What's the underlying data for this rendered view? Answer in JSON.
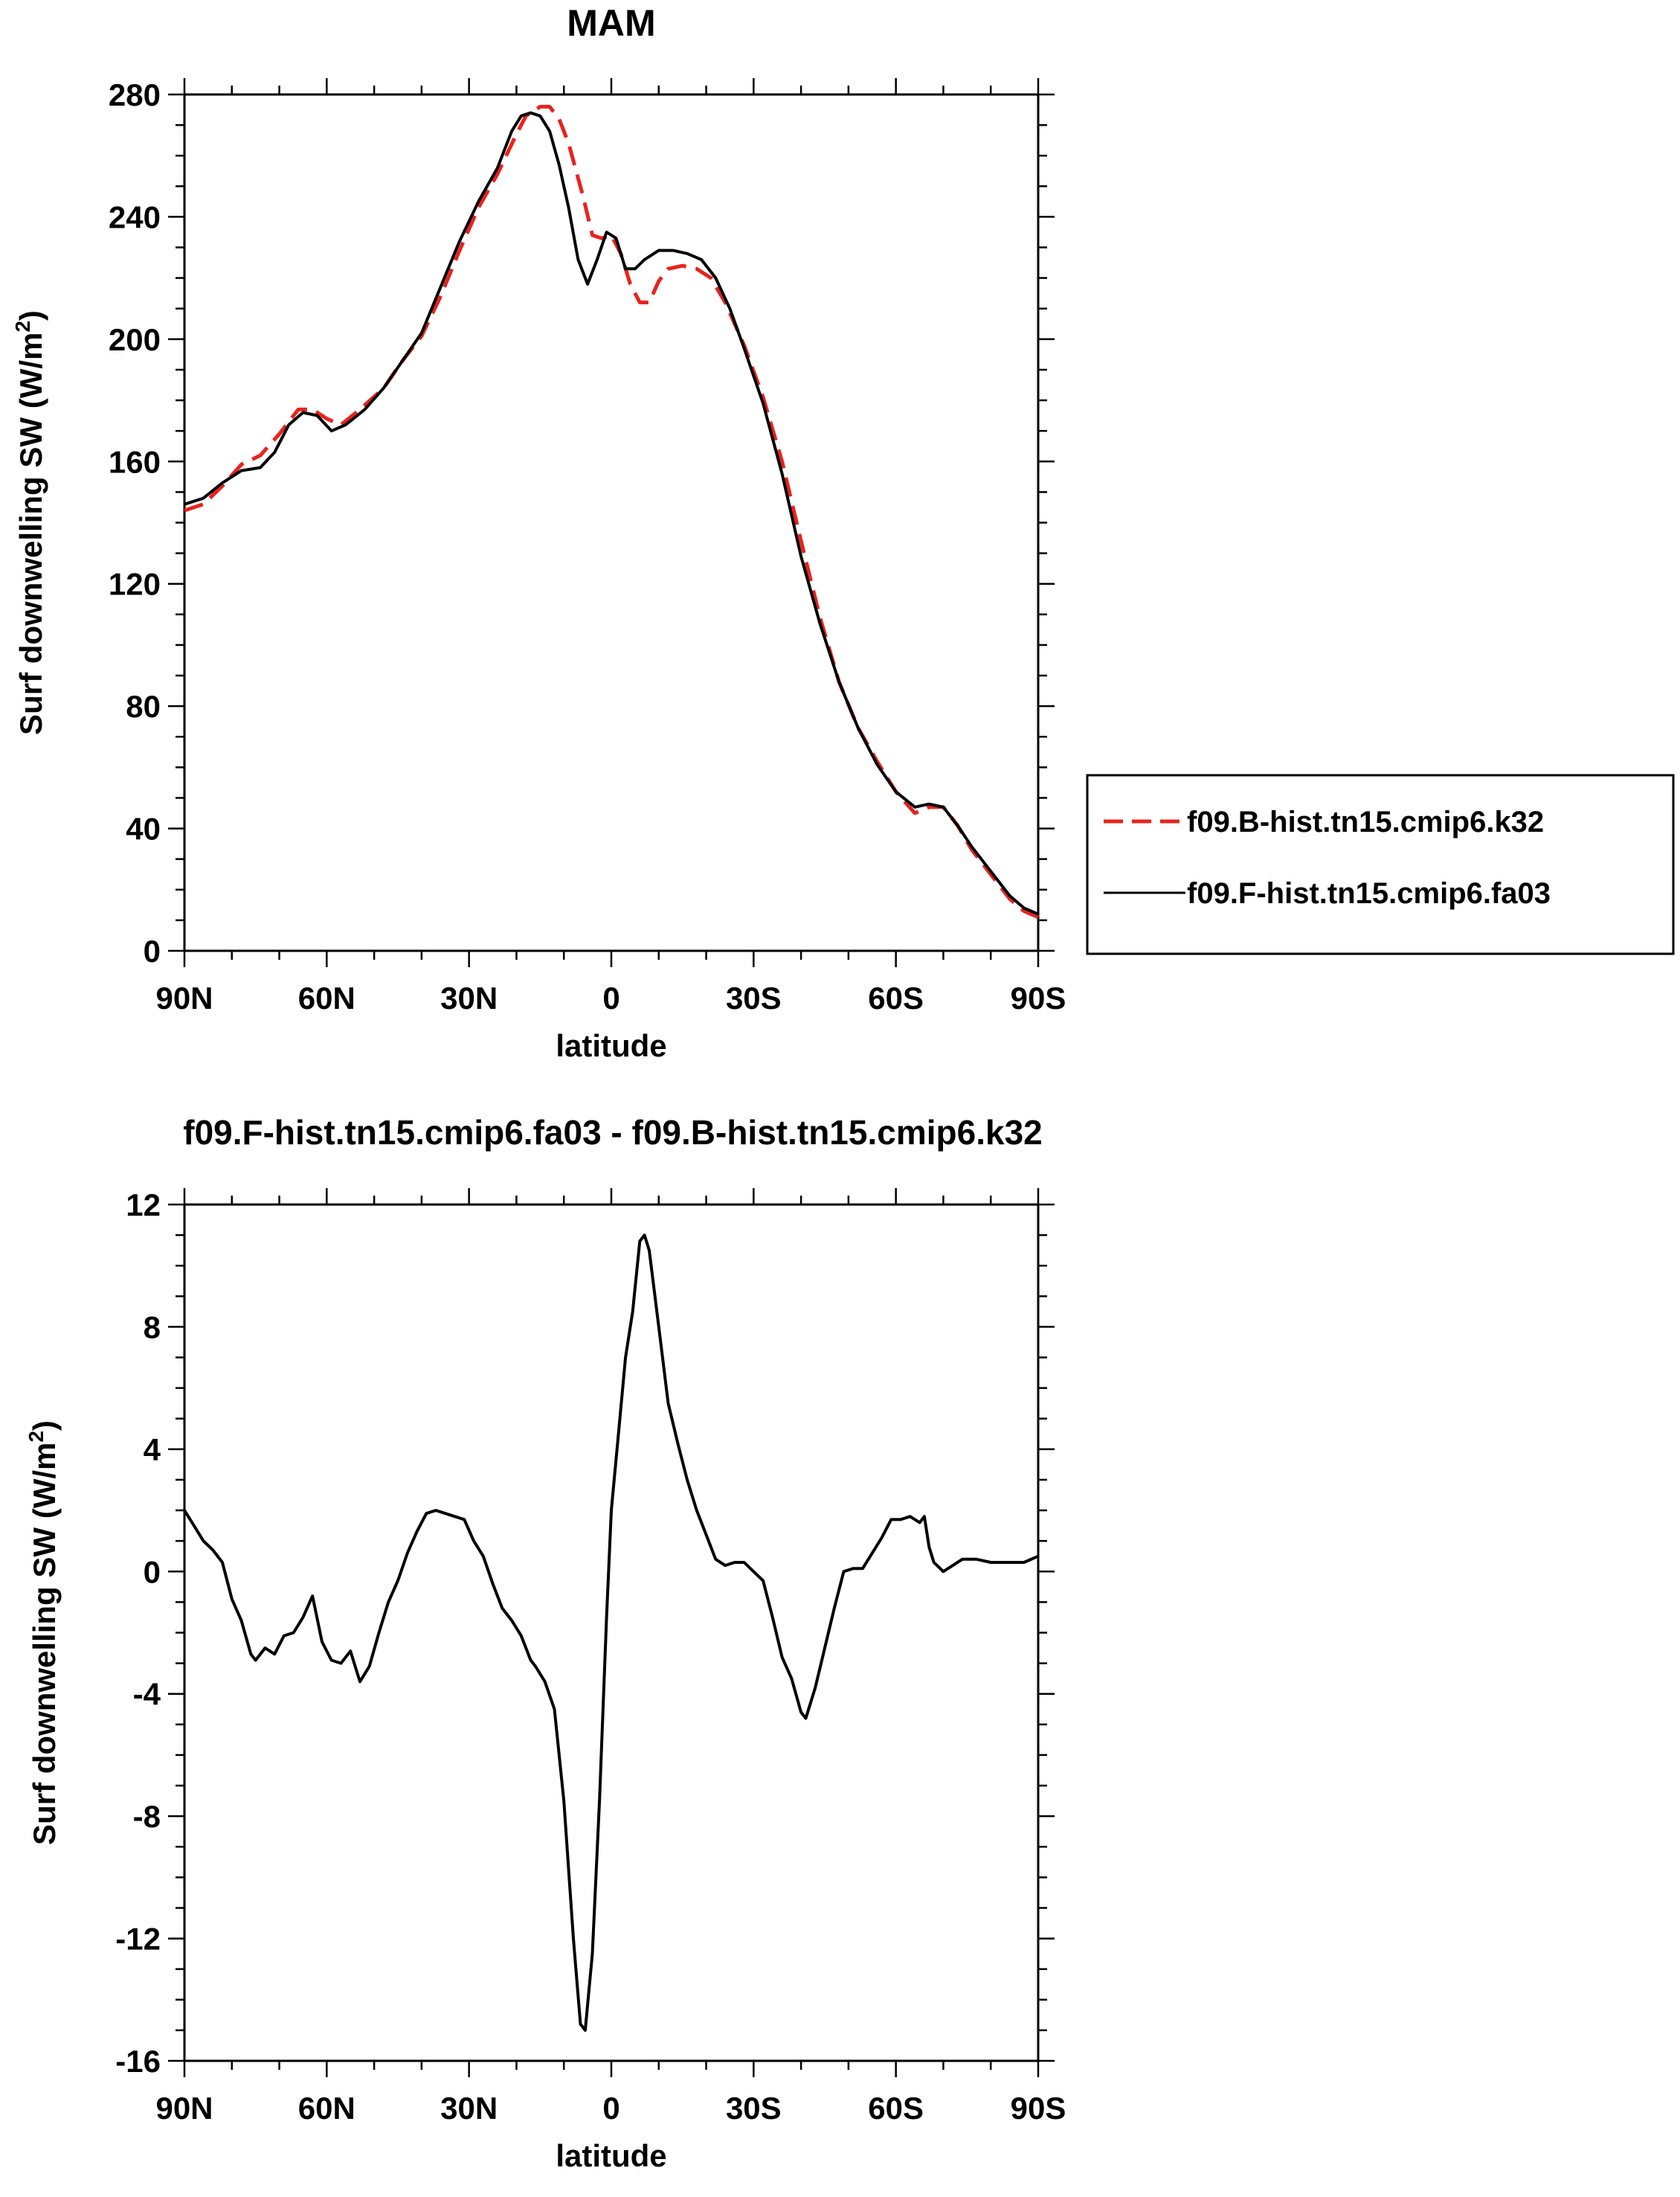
{
  "chart_data": [
    {
      "type": "line",
      "title": "MAM",
      "xlabel": "latitude",
      "ylabel": "Surf downwelling SW (W/m",
      "ylabel_sup": "2",
      "ylabel_end": ")",
      "xlim": [
        90,
        -90
      ],
      "ylim": [
        0,
        280
      ],
      "yticks": [
        0,
        40,
        80,
        120,
        160,
        200,
        240,
        280
      ],
      "xticks": [
        90,
        60,
        30,
        0,
        -30,
        -60,
        -90
      ],
      "xtick_labels": [
        "90N",
        "60N",
        "30N",
        "0",
        "30S",
        "60S",
        "90S"
      ],
      "legend": "right",
      "series": [
        {
          "name": "f09.B-hist.tn15.cmip6.k32",
          "color": "#e8231e",
          "dash": "dashed",
          "points": [
            [
              90,
              144
            ],
            [
              86,
              146
            ],
            [
              82,
              152
            ],
            [
              78,
              159
            ],
            [
              74,
              162
            ],
            [
              70,
              169
            ],
            [
              66,
              177
            ],
            [
              63,
              177
            ],
            [
              60,
              174
            ],
            [
              57,
              172
            ],
            [
              53,
              177
            ],
            [
              48,
              184
            ],
            [
              44,
              193
            ],
            [
              40,
              201
            ],
            [
              36,
              214
            ],
            [
              32,
              229
            ],
            [
              28,
              243
            ],
            [
              24,
              254
            ],
            [
              20,
              267
            ],
            [
              18,
              273
            ],
            [
              15,
              276
            ],
            [
              13,
              276
            ],
            [
              11,
              272
            ],
            [
              9,
              264
            ],
            [
              6,
              247
            ],
            [
              4,
              234
            ],
            [
              2,
              233
            ],
            [
              0,
              234
            ],
            [
              -2,
              228
            ],
            [
              -4,
              218
            ],
            [
              -6,
              212
            ],
            [
              -8,
              212
            ],
            [
              -10,
              219
            ],
            [
              -12,
              223
            ],
            [
              -15,
              224
            ],
            [
              -18,
              223
            ],
            [
              -21,
              220
            ],
            [
              -24,
              212
            ],
            [
              -28,
              198
            ],
            [
              -32,
              181
            ],
            [
              -36,
              160
            ],
            [
              -40,
              134
            ],
            [
              -44,
              109
            ],
            [
              -48,
              88
            ],
            [
              -52,
              73
            ],
            [
              -56,
              62
            ],
            [
              -60,
              52
            ],
            [
              -64,
              45
            ],
            [
              -67,
              47
            ],
            [
              -70,
              47
            ],
            [
              -73,
              41
            ],
            [
              -76,
              33
            ],
            [
              -80,
              25
            ],
            [
              -84,
              17
            ],
            [
              -87,
              13
            ],
            [
              -90,
              11
            ]
          ]
        },
        {
          "name": "f09.F-hist.tn15.cmip6.fa03",
          "color": "#000000",
          "dash": "solid",
          "points": [
            [
              90,
              146
            ],
            [
              86,
              148
            ],
            [
              82,
              153
            ],
            [
              78,
              157
            ],
            [
              74,
              158
            ],
            [
              71,
              163
            ],
            [
              68,
              172
            ],
            [
              65,
              176
            ],
            [
              62,
              175
            ],
            [
              59,
              170
            ],
            [
              56,
              172
            ],
            [
              52,
              177
            ],
            [
              48,
              184
            ],
            [
              44,
              193
            ],
            [
              40,
              202
            ],
            [
              36,
              217
            ],
            [
              32,
              232
            ],
            [
              28,
              245
            ],
            [
              24,
              256
            ],
            [
              21,
              268
            ],
            [
              19,
              273
            ],
            [
              17,
              274
            ],
            [
              15,
              273
            ],
            [
              13,
              268
            ],
            [
              11,
              257
            ],
            [
              9,
              243
            ],
            [
              7,
              226
            ],
            [
              5,
              218
            ],
            [
              3,
              226
            ],
            [
              1,
              235
            ],
            [
              -1,
              233
            ],
            [
              -3,
              223
            ],
            [
              -5,
              223
            ],
            [
              -7,
              226
            ],
            [
              -10,
              229
            ],
            [
              -13,
              229
            ],
            [
              -16,
              228
            ],
            [
              -19,
              226
            ],
            [
              -22,
              220
            ],
            [
              -25,
              210
            ],
            [
              -28,
              197
            ],
            [
              -32,
              179
            ],
            [
              -36,
              156
            ],
            [
              -40,
              129
            ],
            [
              -44,
              107
            ],
            [
              -48,
              88
            ],
            [
              -52,
              73
            ],
            [
              -56,
              61
            ],
            [
              -60,
              52
            ],
            [
              -64,
              47
            ],
            [
              -67,
              48
            ],
            [
              -70,
              47
            ],
            [
              -73,
              41
            ],
            [
              -76,
              34
            ],
            [
              -80,
              26
            ],
            [
              -84,
              18
            ],
            [
              -87,
              14
            ],
            [
              -90,
              12
            ]
          ]
        }
      ]
    },
    {
      "type": "line",
      "title": "f09.F-hist.tn15.cmip6.fa03 - f09.B-hist.tn15.cmip6.k32",
      "xlabel": "latitude",
      "ylabel": "Surf downwelling SW (W/m",
      "ylabel_sup": "2",
      "ylabel_end": ")",
      "xlim": [
        90,
        -90
      ],
      "ylim": [
        -16,
        12
      ],
      "yticks": [
        -16,
        -12,
        -8,
        -4,
        0,
        4,
        8,
        12
      ],
      "xticks": [
        90,
        60,
        30,
        0,
        -30,
        -60,
        -90
      ],
      "xtick_labels": [
        "90N",
        "60N",
        "30N",
        "0",
        "30S",
        "60S",
        "90S"
      ],
      "series": [
        {
          "color": "#000000",
          "dash": "solid",
          "points": [
            [
              90,
              2.0
            ],
            [
              88,
              1.5
            ],
            [
              86,
              1.0
            ],
            [
              84,
              0.7
            ],
            [
              82,
              0.3
            ],
            [
              80,
              -0.9
            ],
            [
              78,
              -1.6
            ],
            [
              76,
              -2.7
            ],
            [
              75,
              -2.9
            ],
            [
              73,
              -2.5
            ],
            [
              71,
              -2.7
            ],
            [
              69,
              -2.1
            ],
            [
              67,
              -2.0
            ],
            [
              65,
              -1.5
            ],
            [
              63,
              -0.8
            ],
            [
              61,
              -2.3
            ],
            [
              59,
              -2.9
            ],
            [
              57,
              -3.0
            ],
            [
              55,
              -2.6
            ],
            [
              53,
              -3.6
            ],
            [
              51,
              -3.1
            ],
            [
              49,
              -2.0
            ],
            [
              47,
              -1.0
            ],
            [
              45,
              -0.3
            ],
            [
              43,
              0.6
            ],
            [
              41,
              1.3
            ],
            [
              39,
              1.9
            ],
            [
              37,
              2.0
            ],
            [
              35,
              1.9
            ],
            [
              33,
              1.8
            ],
            [
              31,
              1.7
            ],
            [
              29,
              1.0
            ],
            [
              27,
              0.5
            ],
            [
              25,
              -0.4
            ],
            [
              23,
              -1.2
            ],
            [
              21,
              -1.6
            ],
            [
              19,
              -2.1
            ],
            [
              17,
              -2.9
            ],
            [
              16,
              -3.1
            ],
            [
              14,
              -3.6
            ],
            [
              12,
              -4.5
            ],
            [
              10,
              -7.5
            ],
            [
              8,
              -12.0
            ],
            [
              6.5,
              -14.8
            ],
            [
              5.5,
              -15.0
            ],
            [
              4,
              -12.5
            ],
            [
              2.5,
              -7.5
            ],
            [
              1,
              -1.5
            ],
            [
              0,
              2.0
            ],
            [
              -1.5,
              4.5
            ],
            [
              -3,
              7.0
            ],
            [
              -4.5,
              8.5
            ],
            [
              -6,
              10.8
            ],
            [
              -7,
              11.0
            ],
            [
              -8,
              10.5
            ],
            [
              -10,
              8.0
            ],
            [
              -12,
              5.5
            ],
            [
              -14,
              4.2
            ],
            [
              -16,
              3.0
            ],
            [
              -18,
              2.0
            ],
            [
              -20,
              1.2
            ],
            [
              -22,
              0.4
            ],
            [
              -24,
              0.2
            ],
            [
              -26,
              0.3
            ],
            [
              -28,
              0.3
            ],
            [
              -30,
              0.0
            ],
            [
              -32,
              -0.3
            ],
            [
              -34,
              -1.5
            ],
            [
              -36,
              -2.8
            ],
            [
              -38,
              -3.5
            ],
            [
              -40,
              -4.6
            ],
            [
              -41,
              -4.8
            ],
            [
              -43,
              -3.8
            ],
            [
              -45,
              -2.5
            ],
            [
              -47,
              -1.2
            ],
            [
              -49,
              0.0
            ],
            [
              -51,
              0.1
            ],
            [
              -53,
              0.1
            ],
            [
              -55,
              0.6
            ],
            [
              -57,
              1.1
            ],
            [
              -59,
              1.7
            ],
            [
              -61,
              1.7
            ],
            [
              -63,
              1.8
            ],
            [
              -65,
              1.6
            ],
            [
              -66,
              1.8
            ],
            [
              -67,
              0.8
            ],
            [
              -68,
              0.3
            ],
            [
              -70,
              0.0
            ],
            [
              -72,
              0.2
            ],
            [
              -74,
              0.4
            ],
            [
              -77,
              0.4
            ],
            [
              -80,
              0.3
            ],
            [
              -84,
              0.3
            ],
            [
              -87,
              0.3
            ],
            [
              -90,
              0.5
            ]
          ]
        }
      ]
    }
  ]
}
